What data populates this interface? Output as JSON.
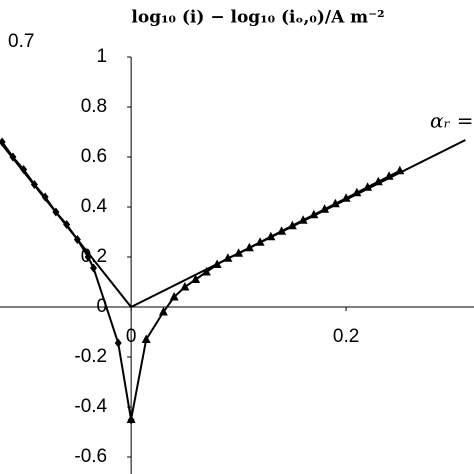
{
  "chart_data": {
    "type": "line",
    "title": "log₁₀ (i) − log₁₀ (iₒ,₀)/A m⁻²",
    "annotations": [
      "0.7",
      "αᵣ ="
    ],
    "xlim": [
      -0.122,
      0.319
    ],
    "ylim": [
      -0.668,
      1.228
    ],
    "xticks": [
      0,
      0.2
    ],
    "yticks": [
      1,
      0.8,
      0.6,
      0.4,
      0.2,
      0,
      -0.2,
      -0.4,
      -0.6
    ],
    "grid": false,
    "series": [
      {
        "color": "#000000",
        "marker": "none",
        "x": [
          -0.122,
          0,
          0.311
        ],
        "values": [
          0.66,
          0,
          0.668
        ]
      },
      {
        "color": "#000000",
        "marker": "diamond",
        "x": [
          -0.12,
          -0.11,
          -0.1,
          -0.09,
          -0.08,
          -0.07,
          -0.06,
          -0.05,
          -0.04,
          -0.035,
          -0.012,
          0
        ],
        "values": [
          0.66,
          0.6,
          0.55,
          0.49,
          0.44,
          0.38,
          0.33,
          0.27,
          0.2,
          0.156,
          -0.144,
          -0.452
        ]
      },
      {
        "color": "#000000",
        "marker": "triangle",
        "x": [
          0,
          0.014,
          0.03,
          0.04,
          0.05,
          0.06,
          0.07,
          0.08,
          0.09,
          0.1,
          0.11,
          0.12,
          0.13,
          0.14,
          0.15,
          0.16,
          0.17,
          0.18,
          0.19,
          0.2,
          0.21,
          0.22,
          0.23,
          0.24,
          0.25
        ],
        "values": [
          -0.45,
          -0.13,
          -0.02,
          0.04,
          0.08,
          0.11,
          0.14,
          0.17,
          0.195,
          0.215,
          0.237,
          0.259,
          0.281,
          0.303,
          0.325,
          0.347,
          0.369,
          0.391,
          0.413,
          0.435,
          0.457,
          0.479,
          0.501,
          0.523,
          0.545
        ]
      }
    ]
  }
}
